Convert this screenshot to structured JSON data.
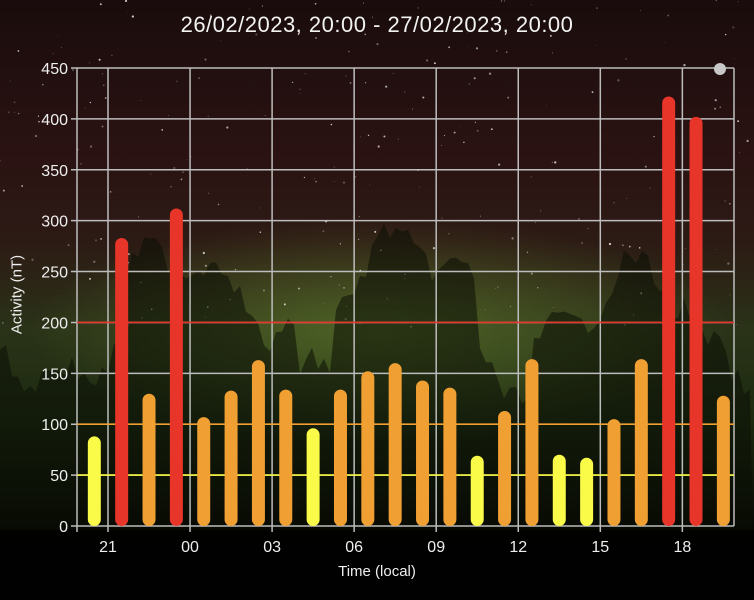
{
  "title": "26/02/2023, 20:00 - 27/02/2023, 20:00",
  "chart_data": {
    "type": "bar",
    "title": "26/02/2023, 20:00 - 27/02/2023, 20:00",
    "xlabel": "Time (local)",
    "ylabel": "Activity (nT)",
    "ylim": [
      0,
      450
    ],
    "yticks": [
      "0",
      "50",
      "100",
      "150",
      "200",
      "250",
      "300",
      "350",
      "400",
      "450"
    ],
    "xticks": [
      "21",
      "00",
      "03",
      "06",
      "09",
      "12",
      "15",
      "18"
    ],
    "categories": [
      "20:00",
      "21:00",
      "22:00",
      "23:00",
      "00:00",
      "01:00",
      "02:00",
      "03:00",
      "04:00",
      "05:00",
      "06:00",
      "07:00",
      "08:00",
      "09:00",
      "10:00",
      "11:00",
      "12:00",
      "13:00",
      "14:00",
      "15:00",
      "16:00",
      "17:00",
      "18:00",
      "19:00"
    ],
    "values": [
      88,
      283,
      130,
      312,
      107,
      133,
      163,
      134,
      96,
      134,
      152,
      160,
      143,
      136,
      69,
      113,
      164,
      70,
      67,
      105,
      164,
      422,
      402,
      128
    ],
    "thresholds": [
      {
        "value": 50,
        "color": "#f5f53c"
      },
      {
        "value": 100,
        "color": "#f0a030"
      },
      {
        "value": 200,
        "color": "#e8352a"
      }
    ],
    "colors": {
      "low": "#fafa48",
      "moderate": "#f0a033",
      "high": "#e8352a",
      "grid": "#bdbdbd"
    },
    "grid": true,
    "legend": "none"
  }
}
